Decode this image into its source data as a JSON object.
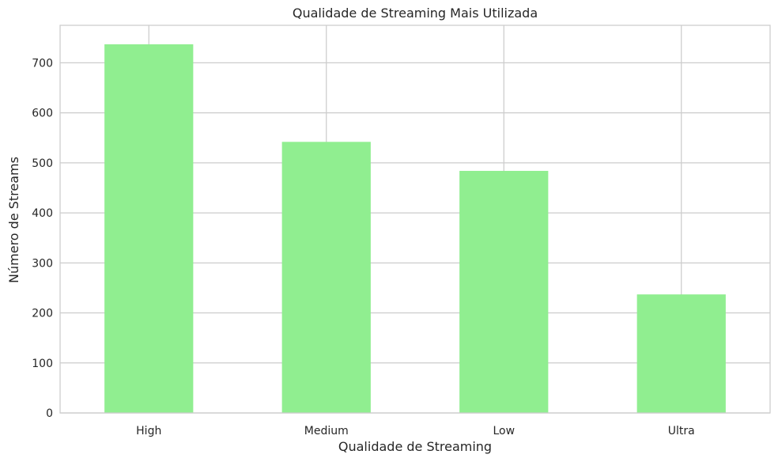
{
  "chart_data": {
    "type": "bar",
    "title": "Qualidade de Streaming Mais Utilizada",
    "xlabel": "Qualidade de Streaming",
    "ylabel": "Número de Streams",
    "categories": [
      "High",
      "Medium",
      "Low",
      "Ultra"
    ],
    "values": [
      737,
      542,
      484,
      237
    ],
    "ylim": [
      0,
      775
    ],
    "yticks": [
      0,
      100,
      200,
      300,
      400,
      500,
      600,
      700
    ],
    "grid": true,
    "bar_color": "#90ee90",
    "grid_color": "#cccccc"
  }
}
